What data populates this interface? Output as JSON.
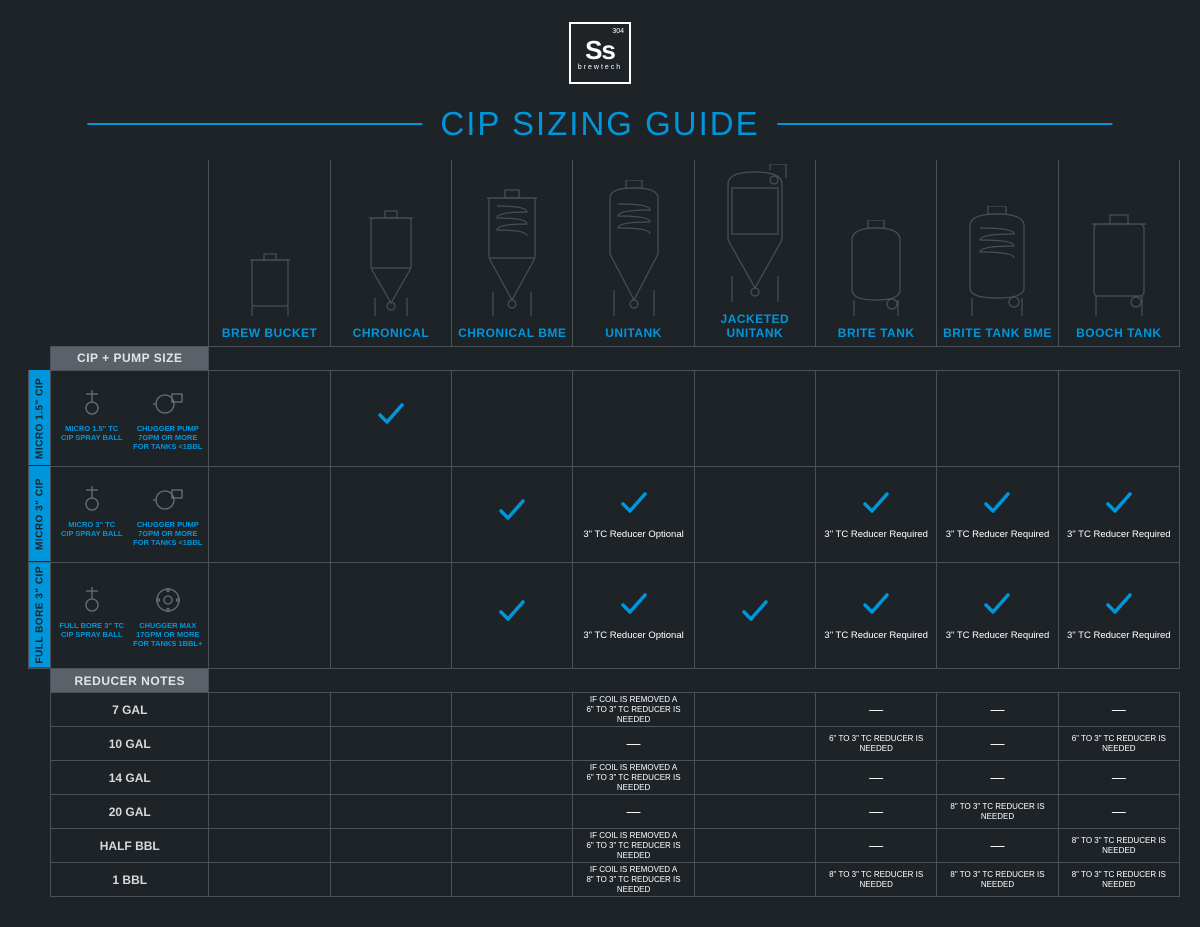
{
  "page": {
    "background_color": "#1e2328",
    "accent_color": "#0096db",
    "border_color": "#4a5259",
    "header_bg": "#5a6168"
  },
  "logo": {
    "main": "Ss",
    "sup": "304",
    "sub": "brewtech"
  },
  "title": "CIP SIZING GUIDE",
  "columns": [
    {
      "name": "BREW BUCKET"
    },
    {
      "name": "CHRONICAL"
    },
    {
      "name": "CHRONICAL BME"
    },
    {
      "name": "UNITANK"
    },
    {
      "name": "JACKETED UNITANK"
    },
    {
      "name": "BRITE TANK"
    },
    {
      "name": "BRITE TANK BME"
    },
    {
      "name": "BOOCH TANK"
    }
  ],
  "header_label": "CIP + PUMP SIZE",
  "cip_rows": [
    {
      "tab": "MICRO 1.5\" CIP",
      "left": {
        "title": "MICRO 1.5\" TC\nCIP SPRAY BALL"
      },
      "right": {
        "title": "CHUGGER PUMP\n7GPM OR MORE\nFOR TANKS <1BBL"
      },
      "cells": [
        {
          "check": false
        },
        {
          "check": true
        },
        {
          "check": false
        },
        {
          "check": false
        },
        {
          "check": false
        },
        {
          "check": false
        },
        {
          "check": false
        },
        {
          "check": false
        }
      ]
    },
    {
      "tab": "MICRO 3\" CIP",
      "left": {
        "title": "MICRO 3\" TC\nCIP SPRAY BALL"
      },
      "right": {
        "title": "CHUGGER PUMP\n7GPM OR MORE\nFOR TANKS <1BBL"
      },
      "cells": [
        {
          "check": false
        },
        {
          "check": false
        },
        {
          "check": true
        },
        {
          "check": true,
          "note": "3\" TC Reducer Optional"
        },
        {
          "check": false
        },
        {
          "check": true,
          "note": "3\" TC Reducer Required"
        },
        {
          "check": true,
          "note": "3\" TC Reducer Required"
        },
        {
          "check": true,
          "note": "3\" TC Reducer Required"
        }
      ]
    },
    {
      "tab": "FULL BORE 3\" CIP",
      "left": {
        "title": "FULL BORE 3\" TC\nCIP SPRAY BALL"
      },
      "right": {
        "title": "CHUGGER MAX\n17GPM OR MORE\nFOR TANKS 1BBL+"
      },
      "cells": [
        {
          "check": false
        },
        {
          "check": false
        },
        {
          "check": true
        },
        {
          "check": true,
          "note": "3\" TC Reducer Optional"
        },
        {
          "check": true
        },
        {
          "check": true,
          "note": "3\" TC Reducer Required"
        },
        {
          "check": true,
          "note": "3\" TC Reducer Required"
        },
        {
          "check": true,
          "note": "3\" TC Reducer Required"
        }
      ]
    }
  ],
  "reducer_header": "REDUCER NOTES",
  "reducer_rows": [
    {
      "size": "7 GAL",
      "cells": [
        "",
        "",
        "",
        "IF COIL IS REMOVED A\n6\" TO 3\" TC REDUCER IS NEEDED",
        "",
        "—",
        "—",
        "—"
      ]
    },
    {
      "size": "10 GAL",
      "cells": [
        "",
        "",
        "",
        "—",
        "",
        "6\" TO 3\" TC REDUCER IS NEEDED",
        "—",
        "6\" TO 3\" TC REDUCER IS NEEDED"
      ]
    },
    {
      "size": "14 GAL",
      "cells": [
        "",
        "",
        "",
        "IF COIL IS REMOVED A\n6\" TO 3\" TC REDUCER IS NEEDED",
        "",
        "—",
        "—",
        "—"
      ]
    },
    {
      "size": "20 GAL",
      "cells": [
        "",
        "",
        "",
        "—",
        "",
        "—",
        "8\" TO 3\" TC REDUCER IS NEEDED",
        "—"
      ]
    },
    {
      "size": "HALF BBL",
      "cells": [
        "",
        "",
        "",
        "IF COIL IS REMOVED A\n6\" TO 3\" TC REDUCER IS NEEDED",
        "",
        "—",
        "—",
        "8\" TO 3\" TC REDUCER IS NEEDED"
      ]
    },
    {
      "size": "1 BBL",
      "cells": [
        "",
        "",
        "",
        "IF COIL IS REMOVED A\n8\" TO 3\" TC REDUCER IS NEEDED",
        "",
        "8\" TO 3\" TC REDUCER IS NEEDED",
        "8\" TO 3\" TC REDUCER IS NEEDED",
        "8\" TO 3\" TC REDUCER IS NEEDED"
      ]
    }
  ]
}
